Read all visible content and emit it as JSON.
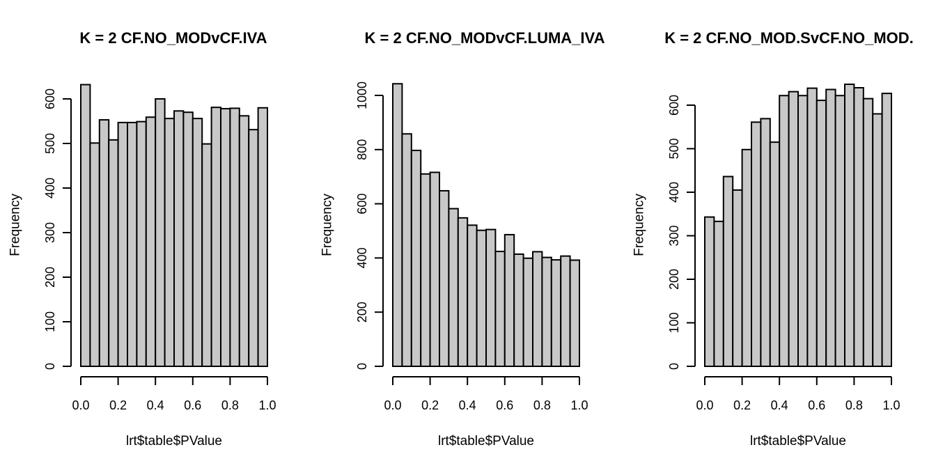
{
  "chart_data": [
    {
      "type": "bar",
      "title": "K = 2 CF.NO_MODvCF.IVA",
      "xlabel": "lrt$table$PValue",
      "ylabel": "Frequency",
      "bin_width": 0.05,
      "bin_edges_start": [
        0.0,
        0.05,
        0.1,
        0.15,
        0.2,
        0.25,
        0.3,
        0.35,
        0.4,
        0.45,
        0.5,
        0.55,
        0.6,
        0.65,
        0.7,
        0.75,
        0.8,
        0.85,
        0.9,
        0.95
      ],
      "values": [
        632,
        501,
        553,
        508,
        547,
        547,
        549,
        559,
        600,
        556,
        573,
        570,
        556,
        499,
        581,
        578,
        579,
        562,
        531,
        580
      ],
      "xlim": [
        0,
        1
      ],
      "ylim": [
        0,
        600
      ],
      "xticks": [
        "0.0",
        "0.2",
        "0.4",
        "0.6",
        "0.8",
        "1.0"
      ],
      "yticks": [
        "0",
        "100",
        "200",
        "300",
        "400",
        "500",
        "600"
      ]
    },
    {
      "type": "bar",
      "title": "K = 2 CF.NO_MODvCF.LUMA_IVA",
      "xlabel": "lrt$table$PValue",
      "ylabel": "Frequency",
      "bin_width": 0.05,
      "bin_edges_start": [
        0.0,
        0.05,
        0.1,
        0.15,
        0.2,
        0.25,
        0.3,
        0.35,
        0.4,
        0.45,
        0.5,
        0.55,
        0.6,
        0.65,
        0.7,
        0.75,
        0.8,
        0.85,
        0.9,
        0.95
      ],
      "values": [
        1043,
        858,
        797,
        710,
        716,
        648,
        582,
        548,
        521,
        502,
        505,
        424,
        486,
        414,
        399,
        423,
        402,
        393,
        407,
        392
      ],
      "xlim": [
        0,
        1
      ],
      "ylim": [
        0,
        1000
      ],
      "xticks": [
        "0.0",
        "0.2",
        "0.4",
        "0.6",
        "0.8",
        "1.0"
      ],
      "yticks": [
        "0",
        "200",
        "400",
        "600",
        "800",
        "1000"
      ]
    },
    {
      "type": "bar",
      "title": "K = 2 CF.NO_MOD.SvCF.NO_MOD.",
      "xlabel": "lrt$table$PValue",
      "ylabel": "Frequency",
      "bin_width": 0.05,
      "bin_edges_start": [
        0.0,
        0.05,
        0.1,
        0.15,
        0.2,
        0.25,
        0.3,
        0.35,
        0.4,
        0.45,
        0.5,
        0.55,
        0.6,
        0.65,
        0.7,
        0.75,
        0.8,
        0.85,
        0.9,
        0.95
      ],
      "values": [
        343,
        333,
        436,
        405,
        498,
        561,
        569,
        515,
        622,
        631,
        622,
        639,
        611,
        636,
        622,
        648,
        640,
        615,
        580,
        627
      ],
      "xlim": [
        0,
        1
      ],
      "ylim": [
        0,
        600
      ],
      "xticks": [
        "0.0",
        "0.2",
        "0.4",
        "0.6",
        "0.8",
        "1.0"
      ],
      "yticks": [
        "0",
        "100",
        "200",
        "300",
        "400",
        "500",
        "600"
      ]
    }
  ]
}
